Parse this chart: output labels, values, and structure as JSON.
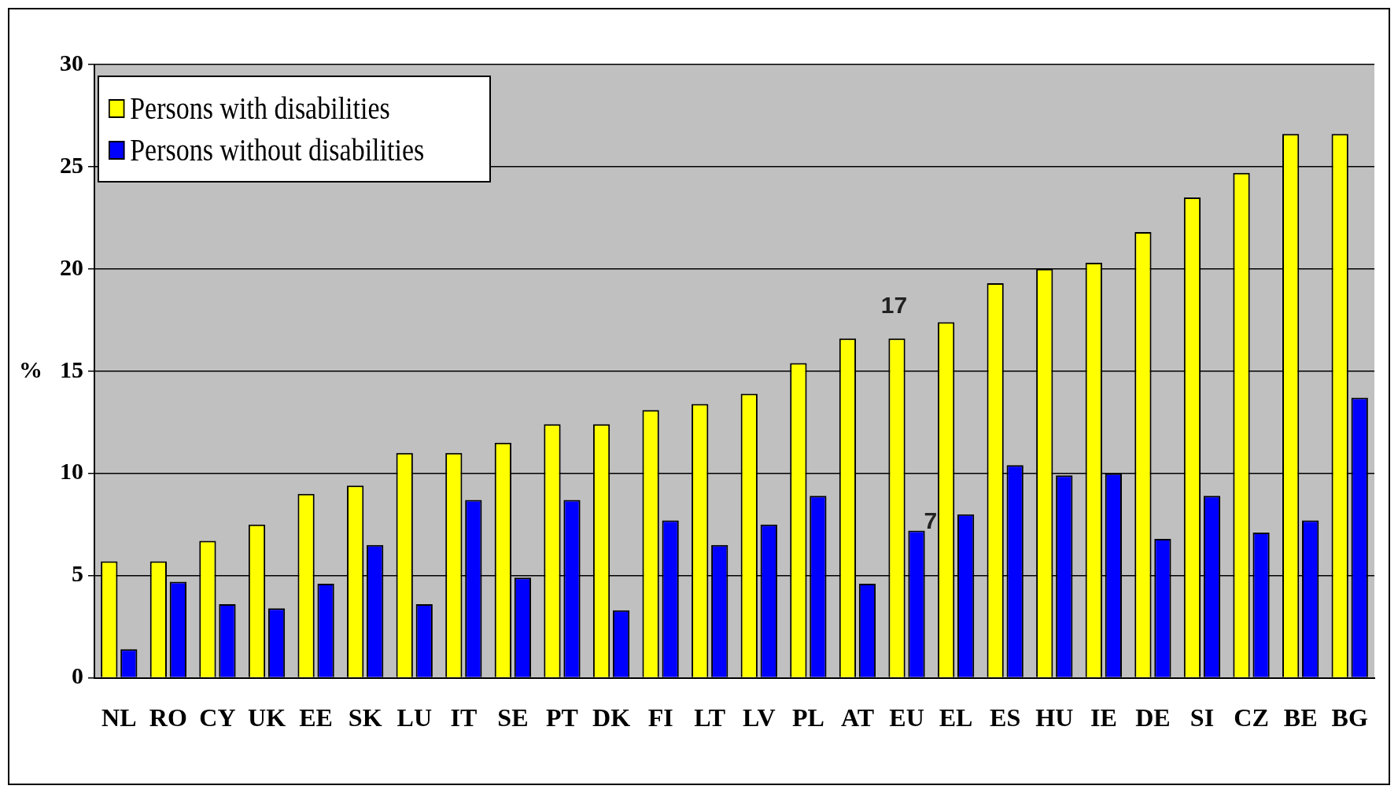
{
  "chart_data": {
    "type": "bar",
    "ylabel": "%",
    "categories": [
      "NL",
      "RO",
      "CY",
      "UK",
      "EE",
      "SK",
      "LU",
      "IT",
      "SE",
      "PT",
      "DK",
      "FI",
      "LT",
      "LV",
      "PL",
      "AT",
      "EU",
      "EL",
      "ES",
      "HU",
      "IE",
      "DE",
      "SI",
      "CZ",
      "BE",
      "BG"
    ],
    "series": [
      {
        "name": "Persons with disabilities",
        "color": "#ffff00",
        "values": [
          5.7,
          5.7,
          6.7,
          7.5,
          9.0,
          9.4,
          11.0,
          11.0,
          11.5,
          12.4,
          12.4,
          13.1,
          13.4,
          13.9,
          15.4,
          16.6,
          16.6,
          17.4,
          19.3,
          20.0,
          20.3,
          21.8,
          23.5,
          24.7,
          26.6,
          26.6
        ]
      },
      {
        "name": "Persons without disabilities",
        "color": "#0000ff",
        "values": [
          1.4,
          4.7,
          3.6,
          3.4,
          4.6,
          6.5,
          3.6,
          8.7,
          4.9,
          8.7,
          3.3,
          7.7,
          6.5,
          7.5,
          8.9,
          4.6,
          7.2,
          8.0,
          10.4,
          9.9,
          10.0,
          6.8,
          8.9,
          7.1,
          7.7,
          13.7
        ]
      }
    ],
    "annotations": [
      {
        "text": "17",
        "x": "EU",
        "y": 16.6
      },
      {
        "text": "7",
        "x": "EU",
        "y": 7.2
      }
    ],
    "ylim": [
      0,
      30
    ],
    "yticks": [
      0,
      5,
      10,
      15,
      20,
      25,
      30
    ],
    "grid": "y",
    "legend": "top left"
  }
}
